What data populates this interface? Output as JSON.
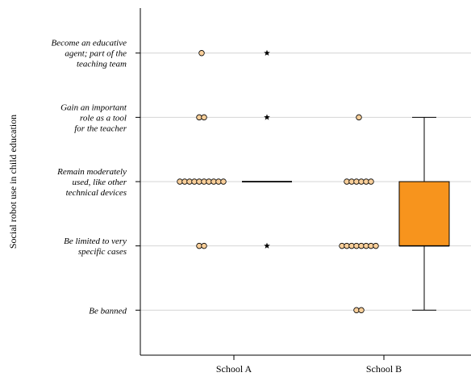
{
  "chart_data": {
    "type": "box-dot",
    "ylabel": "Social robot use in child education",
    "xlabel": "",
    "groups": [
      "School A",
      "School B"
    ],
    "categories": [
      "Be banned",
      "Be limited to very specific cases",
      "Remain moderately used, like other technical devices",
      "Gain an important role as a tool for the teacher",
      "Become an educative agent; part of the teaching team"
    ],
    "category_lines": [
      [
        "Be banned"
      ],
      [
        "Be limited to very",
        "specific cases"
      ],
      [
        "Remain moderately",
        "used, like other",
        "technical devices"
      ],
      [
        "Gain an important",
        "role as a tool",
        "for the teacher"
      ],
      [
        "Become an educative",
        "agent; part of the",
        "teaching team"
      ]
    ],
    "dot_counts": {
      "School A": [
        0,
        2,
        10,
        2,
        1
      ],
      "School B": [
        2,
        8,
        6,
        1,
        0
      ]
    },
    "boxplots": [
      {
        "group": "School A",
        "min": 3,
        "q1": 3,
        "median": 3,
        "q3": 3,
        "max": 3,
        "outliers": [
          2,
          4,
          5
        ]
      },
      {
        "group": "School B",
        "min": 1,
        "q1": 2,
        "median": 2,
        "q3": 3,
        "max": 4,
        "outliers": []
      }
    ],
    "ylim": [
      0.3,
      5.7
    ],
    "grid": true,
    "colors": {
      "dot_fill": "#f9cf9a",
      "box_fill": "#f7941d",
      "grid": "#d4d4d4"
    }
  }
}
